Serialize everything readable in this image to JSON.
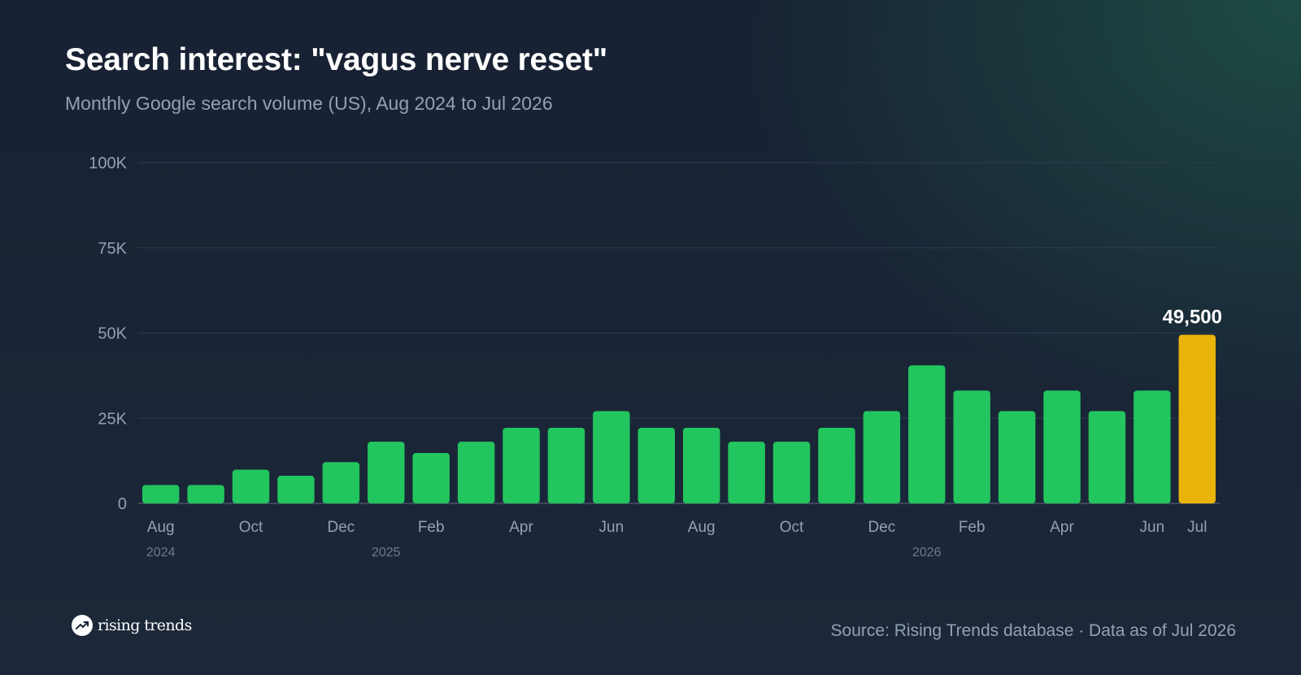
{
  "chart_data": {
    "type": "bar",
    "title": "Search interest: \"vagus nerve reset\"",
    "subtitle": "Monthly Google search volume (US), Aug 2024 to Jul 2026",
    "categories": [
      "Aug 2024",
      "Sep 2024",
      "Oct 2024",
      "Nov 2024",
      "Dec 2024",
      "Jan 2025",
      "Feb 2025",
      "Mar 2025",
      "Apr 2025",
      "May 2025",
      "Jun 2025",
      "Jul 2025",
      "Aug 2025",
      "Sep 2025",
      "Oct 2025",
      "Nov 2025",
      "Dec 2025",
      "Jan 2026",
      "Feb 2026",
      "Mar 2026",
      "Apr 2026",
      "May 2026",
      "Jun 2026",
      "Jul 2026"
    ],
    "values": [
      5400,
      5400,
      9900,
      8100,
      12100,
      18100,
      14800,
      18100,
      22200,
      22200,
      27100,
      22200,
      22200,
      18100,
      18100,
      22200,
      27100,
      40500,
      33100,
      27100,
      33100,
      27100,
      33100,
      49500
    ],
    "x_tick_labels": [
      {
        "index": 0,
        "label": "Aug"
      },
      {
        "index": 2,
        "label": "Oct"
      },
      {
        "index": 4,
        "label": "Dec"
      },
      {
        "index": 6,
        "label": "Feb"
      },
      {
        "index": 8,
        "label": "Apr"
      },
      {
        "index": 10,
        "label": "Jun"
      },
      {
        "index": 12,
        "label": "Aug"
      },
      {
        "index": 14,
        "label": "Oct"
      },
      {
        "index": 16,
        "label": "Dec"
      },
      {
        "index": 18,
        "label": "Feb"
      },
      {
        "index": 20,
        "label": "Apr"
      },
      {
        "index": 22,
        "label": "Jun"
      },
      {
        "index": 23,
        "label": "Jul"
      }
    ],
    "year_labels": [
      {
        "index": 0,
        "label": "2024"
      },
      {
        "index": 5,
        "label": "2025"
      },
      {
        "index": 17,
        "label": "2026"
      }
    ],
    "y_ticks": [
      0,
      25000,
      50000,
      75000,
      100000
    ],
    "y_tick_labels": [
      "0",
      "25K",
      "50K",
      "75K",
      "100K"
    ],
    "ylim": [
      0,
      100000
    ],
    "xlabel": "",
    "ylabel": "",
    "grid": true,
    "highlight_index": 23,
    "highlight_label": "49,500",
    "colors": {
      "bar": "#22c55e",
      "highlight": "#eab308",
      "grid": "#2f3b4d",
      "axis": "#4a5568",
      "tick": "#93a1b5",
      "year": "#6b7a8f",
      "value_label": "#ffffff"
    }
  },
  "footer": {
    "brand": "rising trends",
    "brand_icon": "trend-arrow-icon",
    "source": "Source: Rising Trends database · Data as of Jul 2026"
  }
}
